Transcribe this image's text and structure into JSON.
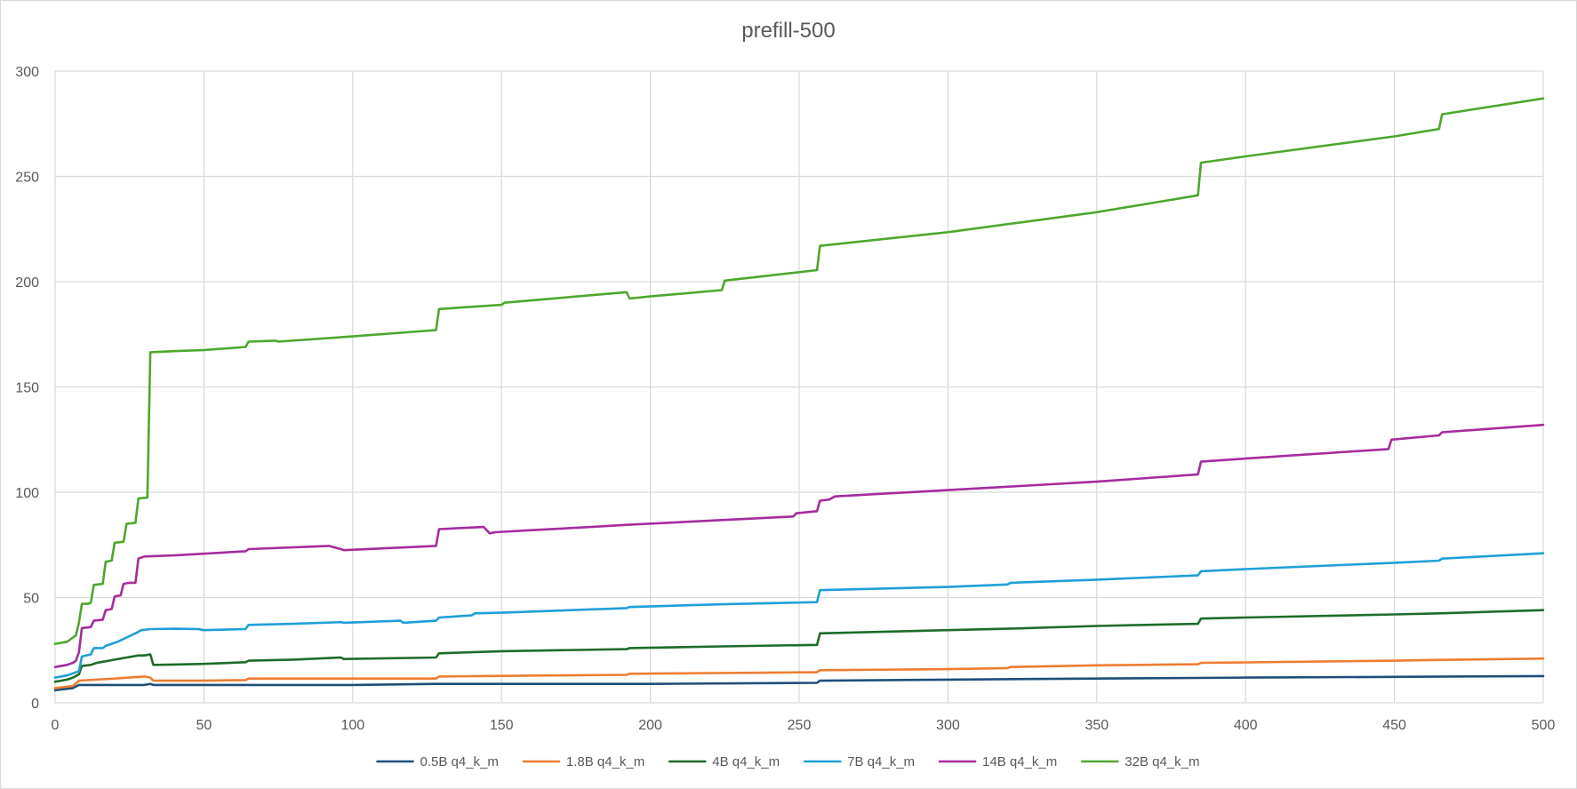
{
  "chart_data": {
    "type": "line",
    "title": "prefill-500",
    "xlabel": "",
    "ylabel": "",
    "xlim": [
      0,
      500
    ],
    "ylim": [
      0,
      300
    ],
    "x_ticks": [
      0,
      50,
      100,
      150,
      200,
      250,
      300,
      350,
      400,
      450,
      500
    ],
    "y_ticks": [
      0,
      50,
      100,
      150,
      200,
      250,
      300
    ],
    "grid": true,
    "legend_position": "bottom",
    "series": [
      {
        "name": "0.5B q4_k_m",
        "color": "#1f4e79",
        "points": [
          [
            0,
            6
          ],
          [
            6,
            7
          ],
          [
            8,
            8.5
          ],
          [
            30,
            8.5
          ],
          [
            32,
            9
          ],
          [
            33,
            8.5
          ],
          [
            50,
            8.5
          ],
          [
            100,
            8.5
          ],
          [
            128,
            9
          ],
          [
            150,
            9
          ],
          [
            200,
            9
          ],
          [
            256,
            9.5
          ],
          [
            257,
            10.5
          ],
          [
            300,
            11
          ],
          [
            350,
            11.5
          ],
          [
            384,
            11.8
          ],
          [
            400,
            12
          ],
          [
            450,
            12.3
          ],
          [
            500,
            12.7
          ]
        ]
      },
      {
        "name": "1.8B q4_k_m",
        "color": "#ed7d31",
        "points": [
          [
            0,
            7
          ],
          [
            6,
            8
          ],
          [
            8,
            10.5
          ],
          [
            20,
            11.5
          ],
          [
            30,
            12.5
          ],
          [
            32,
            12
          ],
          [
            33,
            10.5
          ],
          [
            50,
            10.5
          ],
          [
            64,
            10.8
          ],
          [
            65,
            11.5
          ],
          [
            100,
            11.5
          ],
          [
            128,
            11.5
          ],
          [
            129,
            12.5
          ],
          [
            150,
            12.8
          ],
          [
            192,
            13.3
          ],
          [
            193,
            13.8
          ],
          [
            256,
            14.5
          ],
          [
            257,
            15.5
          ],
          [
            300,
            16
          ],
          [
            320,
            16.5
          ],
          [
            321,
            17
          ],
          [
            350,
            17.8
          ],
          [
            384,
            18.3
          ],
          [
            385,
            19
          ],
          [
            400,
            19.2
          ],
          [
            450,
            20
          ],
          [
            465,
            20.4
          ],
          [
            500,
            21
          ]
        ]
      },
      {
        "name": "4B q4_k_m",
        "color": "#1e6b2a",
        "points": [
          [
            0,
            10
          ],
          [
            4,
            11
          ],
          [
            6,
            12
          ],
          [
            8,
            13.5
          ],
          [
            9,
            17.5
          ],
          [
            12,
            18
          ],
          [
            14,
            19
          ],
          [
            16,
            19.5
          ],
          [
            18,
            20
          ],
          [
            20,
            20.5
          ],
          [
            22,
            21
          ],
          [
            24,
            21.5
          ],
          [
            26,
            22
          ],
          [
            28,
            22.5
          ],
          [
            30,
            22.5
          ],
          [
            32,
            23
          ],
          [
            33,
            18
          ],
          [
            40,
            18.2
          ],
          [
            50,
            18.5
          ],
          [
            64,
            19.3
          ],
          [
            65,
            20
          ],
          [
            80,
            20.5
          ],
          [
            96,
            21.5
          ],
          [
            97,
            20.8
          ],
          [
            128,
            21.5
          ],
          [
            129,
            23.5
          ],
          [
            150,
            24.5
          ],
          [
            192,
            25.5
          ],
          [
            193,
            26
          ],
          [
            224,
            26.8
          ],
          [
            256,
            27.5
          ],
          [
            257,
            33
          ],
          [
            300,
            34.5
          ],
          [
            320,
            35.2
          ],
          [
            350,
            36.5
          ],
          [
            384,
            37.5
          ],
          [
            385,
            40
          ],
          [
            400,
            40.5
          ],
          [
            450,
            42
          ],
          [
            465,
            42.5
          ],
          [
            500,
            44
          ]
        ]
      },
      {
        "name": "7B q4_k_m",
        "color": "#1f9fd8",
        "points": [
          [
            0,
            12
          ],
          [
            4,
            13
          ],
          [
            6,
            14
          ],
          [
            8,
            15
          ],
          [
            9,
            22
          ],
          [
            12,
            23
          ],
          [
            13,
            26
          ],
          [
            16,
            26
          ],
          [
            17,
            27
          ],
          [
            19,
            28
          ],
          [
            21,
            29
          ],
          [
            24,
            31
          ],
          [
            27,
            33
          ],
          [
            29,
            34.5
          ],
          [
            32,
            35
          ],
          [
            33,
            35
          ],
          [
            40,
            35.2
          ],
          [
            48,
            35
          ],
          [
            50,
            34.5
          ],
          [
            64,
            35
          ],
          [
            65,
            37
          ],
          [
            80,
            37.5
          ],
          [
            96,
            38.3
          ],
          [
            97,
            38
          ],
          [
            116,
            39
          ],
          [
            117,
            38
          ],
          [
            128,
            39
          ],
          [
            129,
            40.5
          ],
          [
            140,
            41.5
          ],
          [
            141,
            42.5
          ],
          [
            150,
            42.8
          ],
          [
            192,
            45
          ],
          [
            193,
            45.5
          ],
          [
            224,
            46.8
          ],
          [
            256,
            47.8
          ],
          [
            257,
            53.5
          ],
          [
            300,
            55
          ],
          [
            320,
            56.2
          ],
          [
            321,
            57
          ],
          [
            350,
            58.5
          ],
          [
            384,
            60.5
          ],
          [
            385,
            62.5
          ],
          [
            400,
            63.5
          ],
          [
            450,
            66.5
          ],
          [
            465,
            67.5
          ],
          [
            466,
            68.5
          ],
          [
            500,
            71
          ]
        ]
      },
      {
        "name": "14B q4_k_m",
        "color": "#a62c9c",
        "points": [
          [
            0,
            17
          ],
          [
            4,
            18
          ],
          [
            6,
            19
          ],
          [
            7,
            20
          ],
          [
            8,
            24
          ],
          [
            9,
            35.5
          ],
          [
            12,
            36
          ],
          [
            13,
            39
          ],
          [
            16,
            39.5
          ],
          [
            17,
            44
          ],
          [
            19,
            44.5
          ],
          [
            20,
            50.5
          ],
          [
            22,
            51
          ],
          [
            23,
            56.5
          ],
          [
            25,
            57
          ],
          [
            27,
            57
          ],
          [
            28,
            68.5
          ],
          [
            30,
            69.5
          ],
          [
            40,
            70
          ],
          [
            64,
            72
          ],
          [
            65,
            73
          ],
          [
            92,
            74.5
          ],
          [
            96,
            73
          ],
          [
            97,
            72.5
          ],
          [
            128,
            74.5
          ],
          [
            129,
            82.5
          ],
          [
            144,
            83.5
          ],
          [
            146,
            80.5
          ],
          [
            148,
            81
          ],
          [
            160,
            82
          ],
          [
            180,
            83.5
          ],
          [
            192,
            84.5
          ],
          [
            224,
            86.8
          ],
          [
            248,
            88.5
          ],
          [
            249,
            90
          ],
          [
            256,
            91
          ],
          [
            257,
            96
          ],
          [
            260,
            96.5
          ],
          [
            262,
            98
          ],
          [
            300,
            101
          ],
          [
            350,
            105
          ],
          [
            384,
            108.5
          ],
          [
            385,
            114.5
          ],
          [
            400,
            116
          ],
          [
            448,
            120.5
          ],
          [
            449,
            125
          ],
          [
            465,
            127
          ],
          [
            466,
            128.5
          ],
          [
            500,
            132
          ]
        ]
      },
      {
        "name": "32B q4_k_m",
        "color": "#4ea72e",
        "points": [
          [
            0,
            28
          ],
          [
            4,
            29
          ],
          [
            6,
            31
          ],
          [
            7,
            32
          ],
          [
            8,
            38
          ],
          [
            9,
            47
          ],
          [
            11,
            47
          ],
          [
            12,
            47.5
          ],
          [
            13,
            56
          ],
          [
            16,
            56.5
          ],
          [
            17,
            67
          ],
          [
            19,
            67.5
          ],
          [
            20,
            76
          ],
          [
            23,
            76.5
          ],
          [
            24,
            85
          ],
          [
            27,
            85.5
          ],
          [
            28,
            97
          ],
          [
            31,
            97.5
          ],
          [
            32,
            166.5
          ],
          [
            40,
            167
          ],
          [
            50,
            167.5
          ],
          [
            64,
            169
          ],
          [
            65,
            171.5
          ],
          [
            74,
            172
          ],
          [
            75,
            171.5
          ],
          [
            100,
            174
          ],
          [
            128,
            177
          ],
          [
            129,
            187
          ],
          [
            150,
            189
          ],
          [
            151,
            190
          ],
          [
            192,
            195
          ],
          [
            193,
            192
          ],
          [
            200,
            193
          ],
          [
            224,
            196
          ],
          [
            225,
            200.5
          ],
          [
            256,
            205.5
          ],
          [
            257,
            217
          ],
          [
            300,
            223.5
          ],
          [
            350,
            233
          ],
          [
            384,
            241
          ],
          [
            385,
            256.5
          ],
          [
            400,
            259.5
          ],
          [
            450,
            269
          ],
          [
            465,
            272.5
          ],
          [
            466,
            279.5
          ],
          [
            500,
            287
          ]
        ]
      }
    ]
  }
}
